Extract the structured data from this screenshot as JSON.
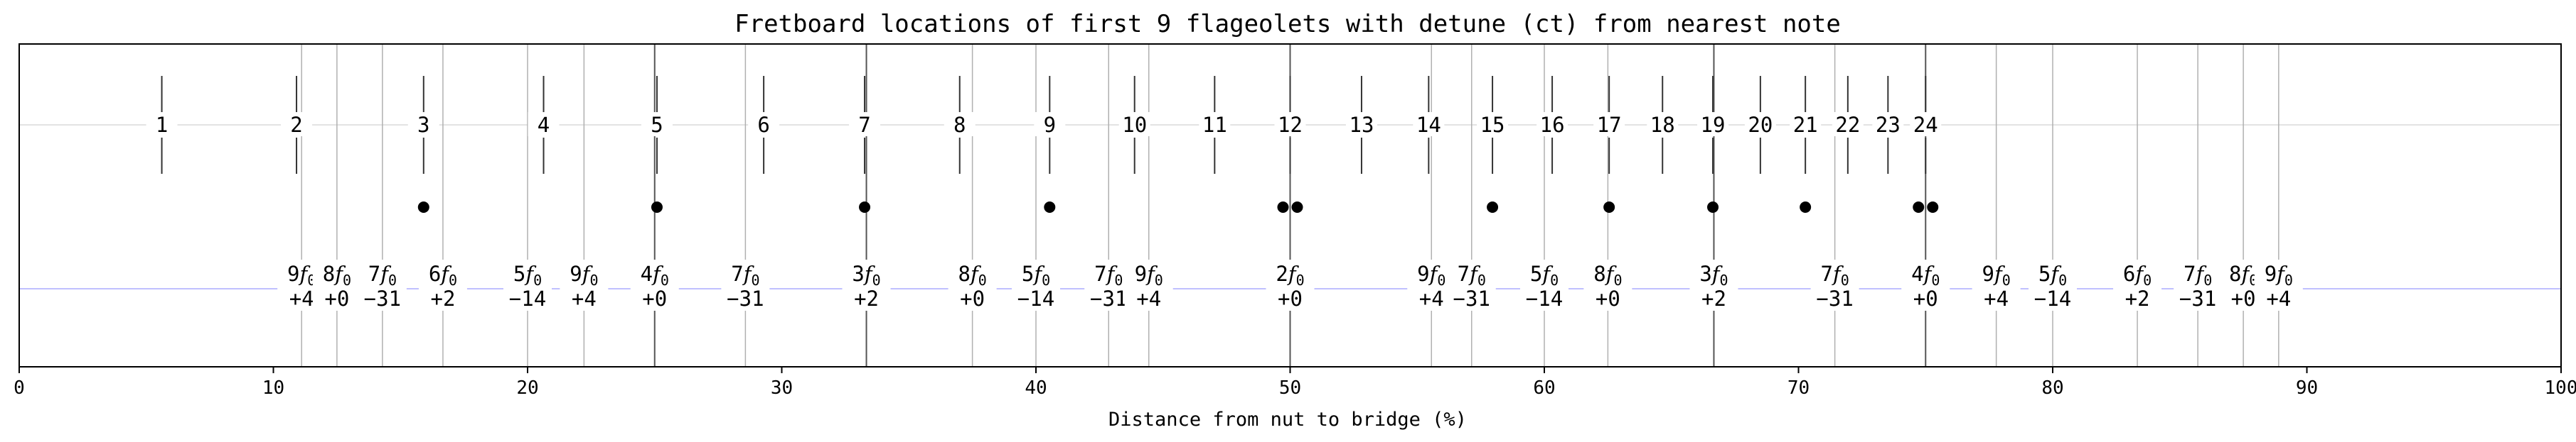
{
  "chart_data": {
    "type": "scatter",
    "title": "Fretboard locations of first 9 flageolets with detune (ct) from nearest note",
    "xlabel": "Distance from nut to bridge (%)",
    "ylabel": "",
    "xlim": [
      0,
      100
    ],
    "xticks": [
      0,
      10,
      20,
      30,
      40,
      50,
      60,
      70,
      80,
      90,
      100
    ],
    "grid": "vertical lines at flageolet positions",
    "frets": [
      {
        "label": "1",
        "x": 5.61
      },
      {
        "label": "2",
        "x": 10.91
      },
      {
        "label": "3",
        "x": 15.91
      },
      {
        "label": "4",
        "x": 20.63
      },
      {
        "label": "5",
        "x": 25.09
      },
      {
        "label": "6",
        "x": 29.29
      },
      {
        "label": "7",
        "x": 33.26
      },
      {
        "label": "8",
        "x": 37.0
      },
      {
        "label": "9",
        "x": 40.54
      },
      {
        "label": "10",
        "x": 43.88
      },
      {
        "label": "11",
        "x": 47.03
      },
      {
        "label": "12",
        "x": 50.0
      },
      {
        "label": "13",
        "x": 52.81
      },
      {
        "label": "14",
        "x": 55.45
      },
      {
        "label": "15",
        "x": 57.96
      },
      {
        "label": "16",
        "x": 60.31
      },
      {
        "label": "17",
        "x": 62.55
      },
      {
        "label": "18",
        "x": 64.65
      },
      {
        "label": "19",
        "x": 66.63
      },
      {
        "label": "20",
        "x": 68.5
      },
      {
        "label": "21",
        "x": 70.27
      },
      {
        "label": "22",
        "x": 71.94
      },
      {
        "label": "23",
        "x": 73.52
      },
      {
        "label": "24",
        "x": 75.0
      }
    ],
    "dots": [
      15.91,
      25.09,
      33.26,
      40.54,
      49.72,
      50.28,
      57.96,
      62.55,
      66.63,
      70.27,
      74.72,
      75.28
    ],
    "flageolets": [
      {
        "num": "9",
        "detune": "+4",
        "x": 11.11
      },
      {
        "num": "8",
        "detune": "+0",
        "x": 12.5
      },
      {
        "num": "7",
        "detune": "−31",
        "x": 14.29
      },
      {
        "num": "6",
        "detune": "+2",
        "x": 16.67
      },
      {
        "num": "5",
        "detune": "−14",
        "x": 20.0
      },
      {
        "num": "9",
        "detune": "+4",
        "x": 22.22
      },
      {
        "num": "4",
        "detune": "+0",
        "x": 25.0
      },
      {
        "num": "7",
        "detune": "−31",
        "x": 28.57
      },
      {
        "num": "3",
        "detune": "+2",
        "x": 33.33
      },
      {
        "num": "8",
        "detune": "+0",
        "x": 37.5
      },
      {
        "num": "5",
        "detune": "−14",
        "x": 40.0
      },
      {
        "num": "7",
        "detune": "−31",
        "x": 42.86
      },
      {
        "num": "9",
        "detune": "+4",
        "x": 44.44
      },
      {
        "num": "2",
        "detune": "+0",
        "x": 50.0
      },
      {
        "num": "9",
        "detune": "+4",
        "x": 55.56
      },
      {
        "num": "7",
        "detune": "−31",
        "x": 57.14
      },
      {
        "num": "5",
        "detune": "−14",
        "x": 60.0
      },
      {
        "num": "8",
        "detune": "+0",
        "x": 62.5
      },
      {
        "num": "3",
        "detune": "+2",
        "x": 66.67
      },
      {
        "num": "7",
        "detune": "−31",
        "x": 71.43
      },
      {
        "num": "4",
        "detune": "+0",
        "x": 75.0
      },
      {
        "num": "9",
        "detune": "+4",
        "x": 77.78
      },
      {
        "num": "5",
        "detune": "−14",
        "x": 80.0
      },
      {
        "num": "6",
        "detune": "+2",
        "x": 83.33
      },
      {
        "num": "7",
        "detune": "−31",
        "x": 85.71
      },
      {
        "num": "8",
        "detune": "+0",
        "x": 87.5
      },
      {
        "num": "9",
        "detune": "+4",
        "x": 88.89
      }
    ],
    "fundamental_symbol": "f",
    "fundamental_subscript": "0",
    "colors": {
      "grid": "#b0b0b0",
      "guide": "#c0c0ff",
      "mark": "#000000"
    }
  }
}
